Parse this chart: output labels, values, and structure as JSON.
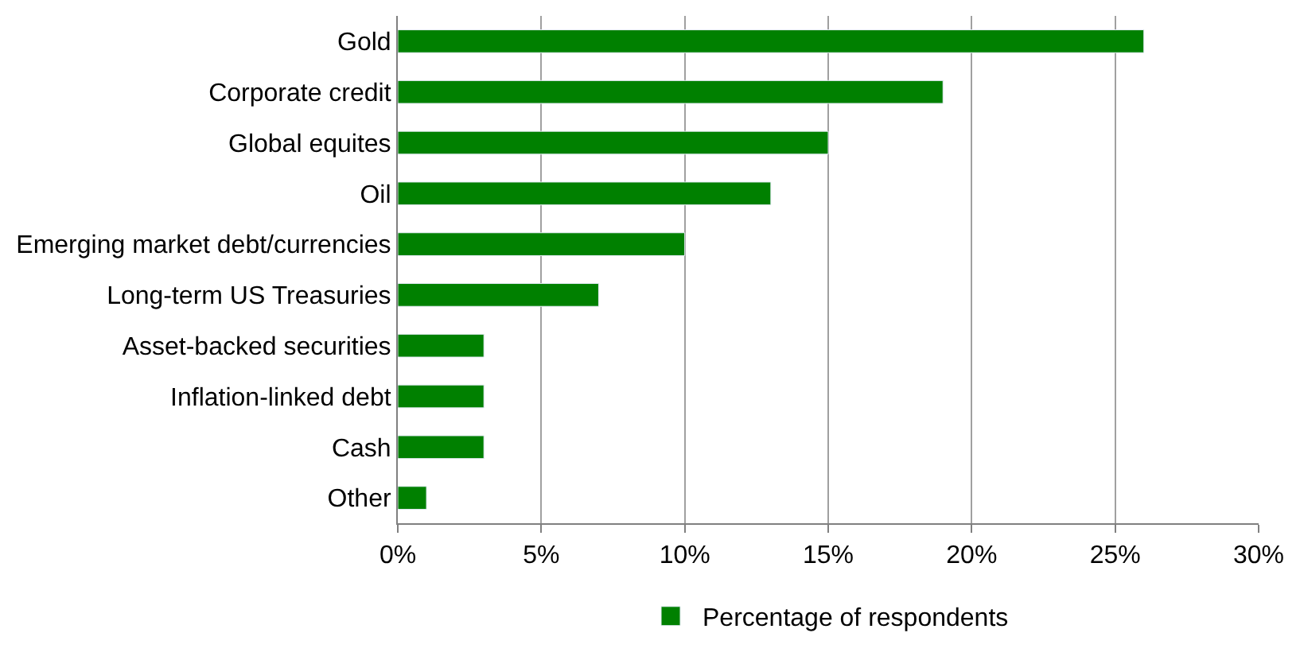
{
  "chart_data": {
    "type": "bar",
    "orientation": "horizontal",
    "categories": [
      "Gold",
      "Corporate credit",
      "Global equites",
      "Oil",
      "Emerging market debt/currencies",
      "Long-term US Treasuries",
      "Asset-backed securities",
      "Inflation-linked debt",
      "Cash",
      "Other"
    ],
    "series": [
      {
        "name": "Percentage of respondents",
        "color": "#008000",
        "values": [
          26,
          19,
          15,
          13,
          10,
          7,
          3,
          3,
          3,
          1
        ]
      }
    ],
    "xlim": [
      0,
      30
    ],
    "xticks": [
      {
        "value": 0,
        "label": "0%"
      },
      {
        "value": 5,
        "label": "5%"
      },
      {
        "value": 10,
        "label": "10%"
      },
      {
        "value": 15,
        "label": "15%"
      },
      {
        "value": 20,
        "label": "20%"
      },
      {
        "value": 25,
        "label": "25%"
      },
      {
        "value": 30,
        "label": "30%"
      }
    ],
    "grid": "x",
    "legend": "bottom"
  }
}
